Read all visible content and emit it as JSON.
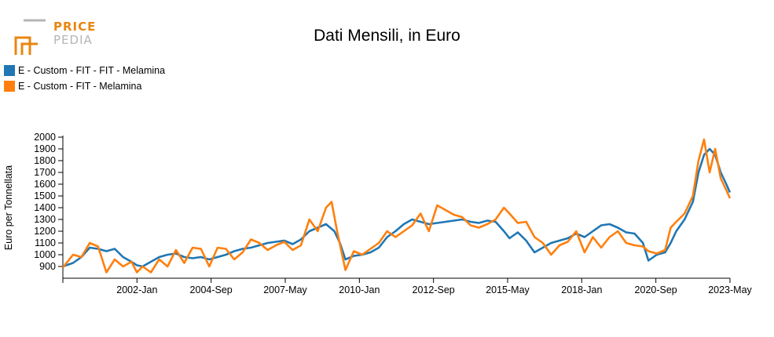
{
  "logo": {
    "line1": "PRICE",
    "line2": "PEDIA",
    "accent": "#e8860f",
    "muted": "#b5b5b5"
  },
  "chart_data": {
    "type": "line",
    "title": "Dati Mensili, in Euro",
    "ylabel": "Euro per Tonnellata",
    "xlabel": "",
    "ylim": [
      800,
      2000
    ],
    "yticks": [
      900,
      1000,
      1100,
      1200,
      1300,
      1400,
      1500,
      1600,
      1700,
      1800,
      1900,
      2000
    ],
    "x_start": "1999-May",
    "x_end": "2023-May",
    "xticks": [
      "2002-Jan",
      "2004-Sep",
      "2007-May",
      "2010-Jan",
      "2012-Sep",
      "2015-May",
      "2018-Jan",
      "2020-Sep",
      "2023-May"
    ],
    "legend_position": "top-left",
    "grid": false,
    "series": [
      {
        "name": "E - Custom - FIT - FIT - Melamina",
        "color": "#1f77b4",
        "values": [
          [
            1999.33,
            900
          ],
          [
            1999.7,
            930
          ],
          [
            2000.0,
            980
          ],
          [
            2000.3,
            1060
          ],
          [
            2000.6,
            1050
          ],
          [
            2000.9,
            1030
          ],
          [
            2001.2,
            1050
          ],
          [
            2001.5,
            980
          ],
          [
            2001.8,
            940
          ],
          [
            2002.0,
            910
          ],
          [
            2002.2,
            900
          ],
          [
            2002.5,
            940
          ],
          [
            2002.8,
            980
          ],
          [
            2003.1,
            1000
          ],
          [
            2003.4,
            1010
          ],
          [
            2003.7,
            980
          ],
          [
            2004.0,
            970
          ],
          [
            2004.3,
            980
          ],
          [
            2004.6,
            960
          ],
          [
            2004.9,
            980
          ],
          [
            2005.2,
            1000
          ],
          [
            2005.5,
            1030
          ],
          [
            2005.8,
            1050
          ],
          [
            2006.1,
            1060
          ],
          [
            2006.4,
            1080
          ],
          [
            2006.7,
            1100
          ],
          [
            2007.0,
            1110
          ],
          [
            2007.3,
            1120
          ],
          [
            2007.6,
            1090
          ],
          [
            2007.9,
            1130
          ],
          [
            2008.2,
            1200
          ],
          [
            2008.5,
            1230
          ],
          [
            2008.8,
            1260
          ],
          [
            2009.1,
            1200
          ],
          [
            2009.3,
            1100
          ],
          [
            2009.5,
            960
          ],
          [
            2009.8,
            990
          ],
          [
            2010.1,
            1000
          ],
          [
            2010.4,
            1020
          ],
          [
            2010.7,
            1060
          ],
          [
            2011.0,
            1150
          ],
          [
            2011.3,
            1200
          ],
          [
            2011.6,
            1260
          ],
          [
            2011.9,
            1300
          ],
          [
            2012.2,
            1280
          ],
          [
            2012.5,
            1260
          ],
          [
            2012.8,
            1270
          ],
          [
            2013.1,
            1280
          ],
          [
            2013.4,
            1290
          ],
          [
            2013.7,
            1300
          ],
          [
            2014.0,
            1280
          ],
          [
            2014.3,
            1270
          ],
          [
            2014.6,
            1290
          ],
          [
            2014.9,
            1280
          ],
          [
            2015.2,
            1200
          ],
          [
            2015.4,
            1140
          ],
          [
            2015.7,
            1190
          ],
          [
            2016.0,
            1120
          ],
          [
            2016.3,
            1020
          ],
          [
            2016.6,
            1060
          ],
          [
            2016.9,
            1100
          ],
          [
            2017.2,
            1120
          ],
          [
            2017.5,
            1140
          ],
          [
            2017.8,
            1180
          ],
          [
            2018.1,
            1150
          ],
          [
            2018.4,
            1200
          ],
          [
            2018.7,
            1250
          ],
          [
            2019.0,
            1260
          ],
          [
            2019.3,
            1230
          ],
          [
            2019.6,
            1190
          ],
          [
            2019.9,
            1180
          ],
          [
            2020.2,
            1100
          ],
          [
            2020.4,
            950
          ],
          [
            2020.7,
            1000
          ],
          [
            2021.0,
            1020
          ],
          [
            2021.2,
            1100
          ],
          [
            2021.4,
            1200
          ],
          [
            2021.7,
            1300
          ],
          [
            2022.0,
            1450
          ],
          [
            2022.2,
            1700
          ],
          [
            2022.4,
            1850
          ],
          [
            2022.6,
            1900
          ],
          [
            2022.8,
            1850
          ],
          [
            2023.0,
            1700
          ],
          [
            2023.2,
            1600
          ],
          [
            2023.33,
            1530
          ]
        ]
      },
      {
        "name": "E - Custom - FIT - Melamina",
        "color": "#ff7f0e",
        "values": [
          [
            1999.33,
            890
          ],
          [
            1999.7,
            1000
          ],
          [
            2000.0,
            980
          ],
          [
            2000.3,
            1100
          ],
          [
            2000.6,
            1070
          ],
          [
            2000.9,
            850
          ],
          [
            2001.2,
            960
          ],
          [
            2001.5,
            900
          ],
          [
            2001.8,
            940
          ],
          [
            2002.0,
            850
          ],
          [
            2002.2,
            900
          ],
          [
            2002.5,
            850
          ],
          [
            2002.8,
            960
          ],
          [
            2003.1,
            900
          ],
          [
            2003.4,
            1040
          ],
          [
            2003.7,
            930
          ],
          [
            2004.0,
            1060
          ],
          [
            2004.3,
            1050
          ],
          [
            2004.6,
            900
          ],
          [
            2004.9,
            1060
          ],
          [
            2005.2,
            1050
          ],
          [
            2005.5,
            960
          ],
          [
            2005.8,
            1020
          ],
          [
            2006.1,
            1130
          ],
          [
            2006.4,
            1100
          ],
          [
            2006.7,
            1040
          ],
          [
            2007.0,
            1080
          ],
          [
            2007.3,
            1110
          ],
          [
            2007.6,
            1040
          ],
          [
            2007.9,
            1080
          ],
          [
            2008.2,
            1300
          ],
          [
            2008.5,
            1200
          ],
          [
            2008.8,
            1400
          ],
          [
            2009.0,
            1450
          ],
          [
            2009.2,
            1200
          ],
          [
            2009.5,
            870
          ],
          [
            2009.8,
            1030
          ],
          [
            2010.1,
            1000
          ],
          [
            2010.4,
            1050
          ],
          [
            2010.7,
            1100
          ],
          [
            2011.0,
            1200
          ],
          [
            2011.3,
            1150
          ],
          [
            2011.6,
            1200
          ],
          [
            2011.9,
            1250
          ],
          [
            2012.2,
            1350
          ],
          [
            2012.5,
            1200
          ],
          [
            2012.8,
            1420
          ],
          [
            2013.1,
            1380
          ],
          [
            2013.4,
            1340
          ],
          [
            2013.7,
            1320
          ],
          [
            2014.0,
            1250
          ],
          [
            2014.3,
            1230
          ],
          [
            2014.6,
            1260
          ],
          [
            2014.9,
            1300
          ],
          [
            2015.2,
            1400
          ],
          [
            2015.4,
            1350
          ],
          [
            2015.7,
            1270
          ],
          [
            2016.0,
            1280
          ],
          [
            2016.3,
            1150
          ],
          [
            2016.6,
            1100
          ],
          [
            2016.9,
            1000
          ],
          [
            2017.2,
            1080
          ],
          [
            2017.5,
            1110
          ],
          [
            2017.8,
            1200
          ],
          [
            2018.1,
            1020
          ],
          [
            2018.4,
            1150
          ],
          [
            2018.7,
            1060
          ],
          [
            2019.0,
            1150
          ],
          [
            2019.3,
            1200
          ],
          [
            2019.6,
            1100
          ],
          [
            2019.9,
            1080
          ],
          [
            2020.2,
            1070
          ],
          [
            2020.4,
            1030
          ],
          [
            2020.7,
            1010
          ],
          [
            2021.0,
            1040
          ],
          [
            2021.2,
            1230
          ],
          [
            2021.4,
            1280
          ],
          [
            2021.7,
            1350
          ],
          [
            2022.0,
            1500
          ],
          [
            2022.2,
            1800
          ],
          [
            2022.4,
            1980
          ],
          [
            2022.6,
            1700
          ],
          [
            2022.8,
            1900
          ],
          [
            2023.0,
            1650
          ],
          [
            2023.2,
            1550
          ],
          [
            2023.33,
            1480
          ]
        ]
      }
    ]
  }
}
